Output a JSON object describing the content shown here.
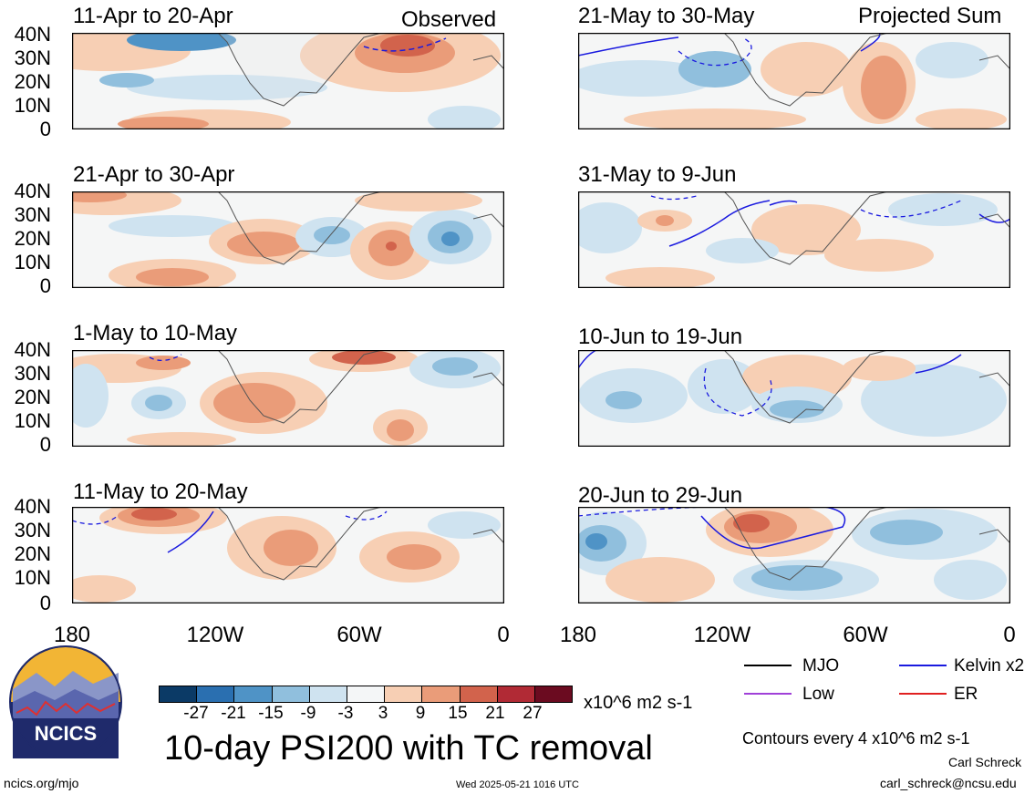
{
  "header": {
    "left_label": "Observed",
    "right_label": "Projected Sum"
  },
  "panels": {
    "left": [
      "11-Apr to 20-Apr",
      "21-Apr to 30-Apr",
      "1-May to 10-May",
      "11-May to 20-May"
    ],
    "right": [
      "21-May to 30-May",
      "31-May to 9-Jun",
      "10-Jun to 19-Jun",
      "20-Jun to 29-Jun"
    ]
  },
  "axes": {
    "y_ticks": [
      "40N",
      "30N",
      "20N",
      "10N",
      "0"
    ],
    "x_ticks": [
      "180",
      "120W",
      "60W",
      "0"
    ]
  },
  "colorbar": {
    "labels": [
      "-27",
      "-21",
      "-15",
      "-9",
      "-3",
      "3",
      "9",
      "15",
      "21",
      "27"
    ],
    "colors": [
      "#0b3a66",
      "#2a6fb0",
      "#4f93c6",
      "#90bfdd",
      "#cfe3f0",
      "#f4f6f7",
      "#f7cfb4",
      "#ea9c79",
      "#d2634c",
      "#b12a35",
      "#6b0b20"
    ],
    "units": "x10^6 m2 s-1"
  },
  "legend": {
    "items": [
      {
        "label": "MJO",
        "color": "#000000"
      },
      {
        "label": "Kelvin x2",
        "color": "#1a1adf"
      },
      {
        "label": "Low",
        "color": "#a040d8"
      },
      {
        "label": "ER",
        "color": "#e02020"
      }
    ],
    "contours_note": "Contours every 4 x10^6 m2 s-1"
  },
  "footer": {
    "main_title": "10-day PSI200 with TC removal",
    "logo_text": "NCICS",
    "site": "ncics.org/mjo",
    "timestamp": "Wed 2025-05-21 1016 UTC",
    "author": "Carl Schreck",
    "email": "carl_schreck@ncsu.edu"
  }
}
